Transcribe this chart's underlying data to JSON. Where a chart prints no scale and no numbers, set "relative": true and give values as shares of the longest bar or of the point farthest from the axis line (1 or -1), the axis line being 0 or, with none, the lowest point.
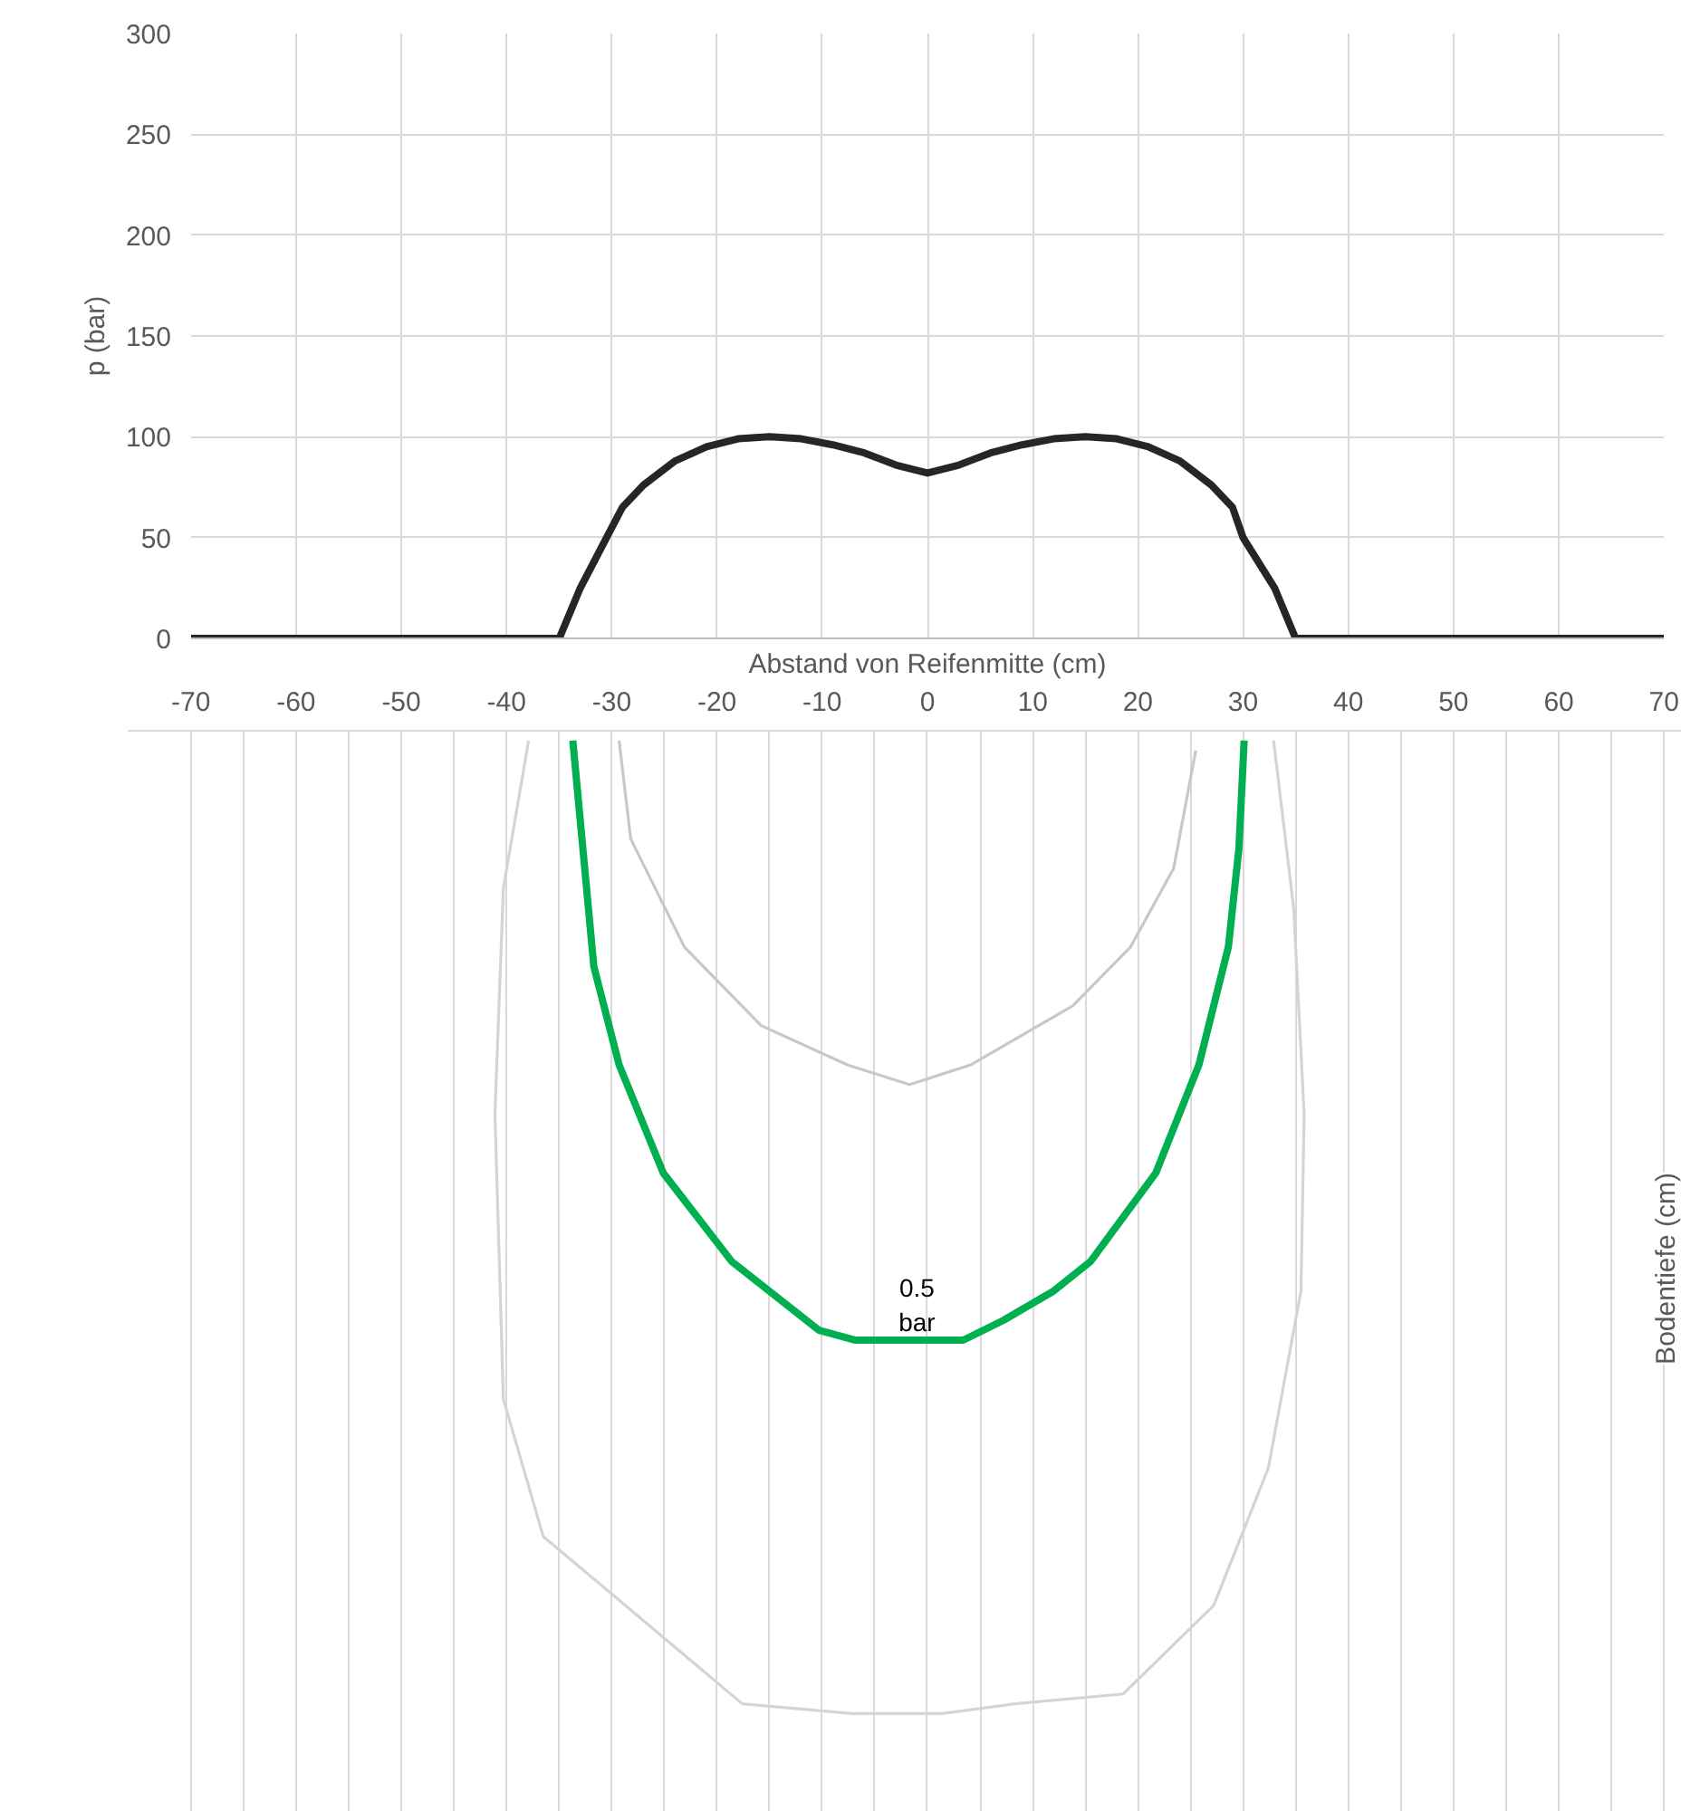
{
  "chart_data": [
    {
      "type": "line",
      "ylabel": "p (bar)",
      "xlabel": "Abstand von Reifenmitte (cm)",
      "xlim": [
        -70,
        70
      ],
      "ylim": [
        0,
        300
      ],
      "xticks": [
        -70,
        -60,
        -50,
        -40,
        -30,
        -20,
        -10,
        0,
        10,
        20,
        30,
        40,
        50,
        60,
        70
      ],
      "yticks": [
        0,
        50,
        100,
        150,
        200,
        250,
        300
      ],
      "grid": true,
      "tick_labels": "y",
      "x": [
        -70,
        -40,
        -38,
        -36,
        -35,
        -33,
        -30.5,
        -29,
        -27,
        -24,
        -21,
        -18,
        -15,
        -12,
        -9,
        -6,
        -3,
        0,
        3,
        6,
        9,
        12,
        15,
        18,
        21,
        24,
        27,
        29,
        30,
        33,
        35,
        36,
        38,
        40,
        70
      ],
      "series": [
        {
          "color": "#262626",
          "values": [
            0,
            0,
            0,
            0,
            0,
            25,
            50,
            65,
            76,
            88,
            95,
            99,
            100,
            99,
            96,
            92,
            86,
            82,
            86,
            92,
            96,
            99,
            100,
            99,
            95,
            88,
            76,
            65,
            50,
            25,
            0,
            0,
            0,
            0,
            0
          ]
        }
      ]
    },
    {
      "type": "line",
      "relative": true,
      "ylabel": "Bodentiefe (cm)",
      "xlim": [
        -76,
        71.7
      ],
      "xticks": [
        -70,
        {
          "value": -65,
          "label": null
        },
        -60,
        {
          "value": -55,
          "label": null
        },
        -50,
        {
          "value": -45,
          "label": null
        },
        -40,
        {
          "value": -35,
          "label": null
        },
        -30,
        {
          "value": -25,
          "label": null
        },
        -20,
        {
          "value": -15,
          "label": null
        },
        -10,
        {
          "value": -5,
          "label": null
        },
        0,
        {
          "value": 5,
          "label": null
        },
        10,
        {
          "value": 15,
          "label": null
        },
        20,
        {
          "value": 25,
          "label": null
        },
        30,
        {
          "value": 35,
          "label": null
        },
        40,
        {
          "value": 45,
          "label": null
        },
        50,
        {
          "value": 55,
          "label": null
        },
        60,
        {
          "value": 65,
          "label": null
        },
        70
      ],
      "grid": "x",
      "annotations": [
        {
          "text": "0.5\nbar",
          "x": -1,
          "y": -0.62
        }
      ],
      "series": [
        {
          "color": "#d4d4d4",
          "x": [
            -37.9,
            -40.3,
            -41.1,
            -40.3,
            -36.5,
            -28.7,
            -17.6,
            -7.2,
            1.4,
            8.3,
            18.6,
            27.2,
            32.4,
            35.5,
            35.8,
            34.8,
            32.9
          ],
          "values": [
            -0.01,
            -0.16,
            -0.39,
            -0.68,
            -0.82,
            -0.89,
            -0.99,
            -1.0,
            -1.0,
            -0.99,
            -0.98,
            -0.89,
            -0.75,
            -0.57,
            -0.39,
            -0.18,
            -0.01
          ]
        },
        {
          "color": "#c8c8c8",
          "x": [
            -29.3,
            -28.2,
            -23.1,
            -15.8,
            -7.6,
            -1.7,
            4.1,
            13.8,
            19.3,
            23.4,
            25.5
          ],
          "values": [
            -0.01,
            -0.11,
            -0.22,
            -0.3,
            -0.34,
            -0.36,
            -0.34,
            -0.28,
            -0.22,
            -0.14,
            -0.02
          ]
        },
        {
          "color": "#00b050",
          "x": [
            -33.7,
            -31.7,
            -29.3,
            -25.1,
            -18.6,
            -10.3,
            -6.9,
            3.4,
            7.2,
            12.0,
            15.5,
            21.7,
            25.8,
            28.6,
            29.6,
            30.1
          ],
          "values": [
            -0.01,
            -0.24,
            -0.34,
            -0.45,
            -0.54,
            -0.61,
            -0.62,
            -0.62,
            -0.6,
            -0.57,
            -0.54,
            -0.45,
            -0.34,
            -0.22,
            -0.12,
            -0.01
          ]
        }
      ]
    }
  ]
}
